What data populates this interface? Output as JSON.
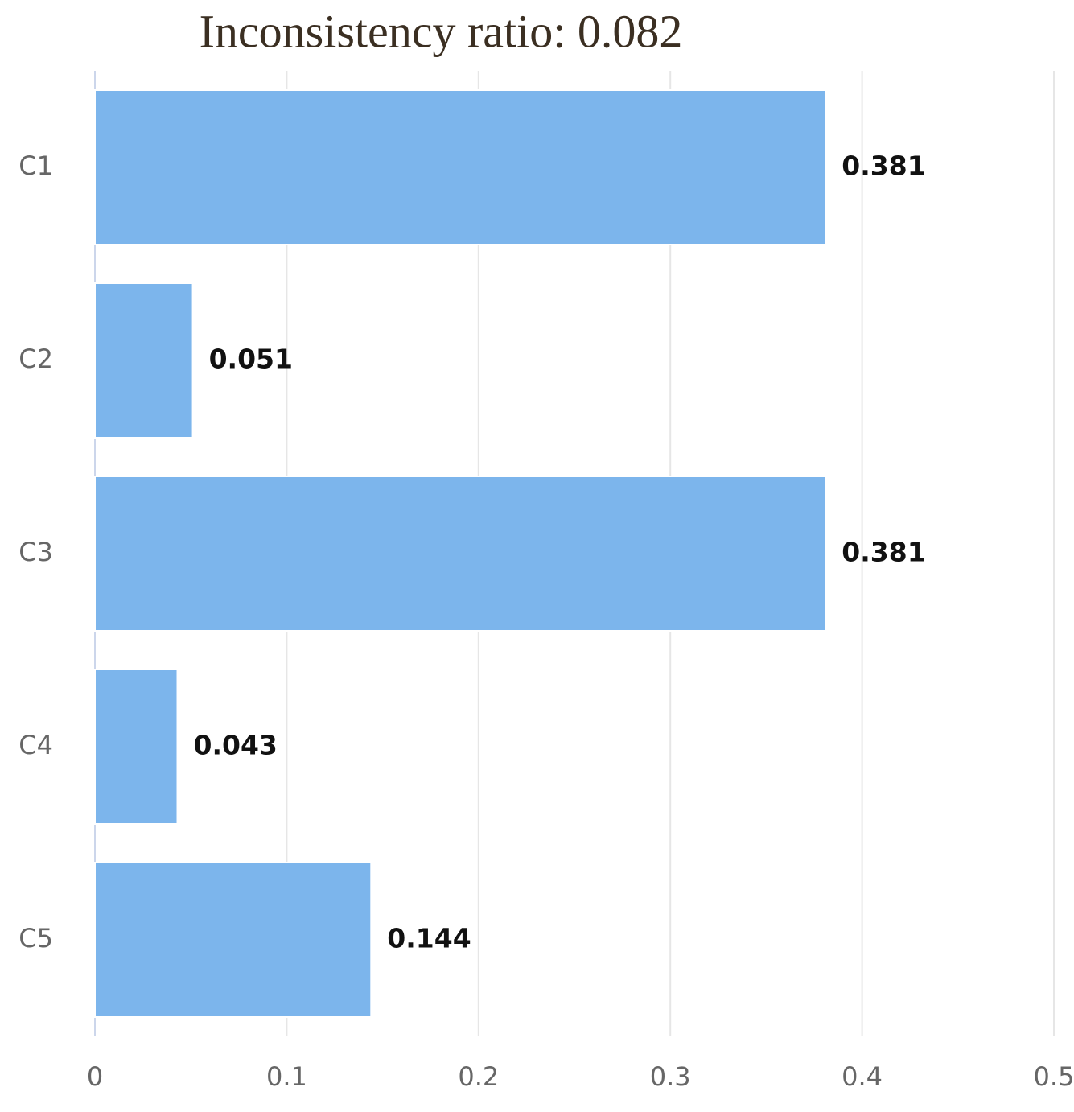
{
  "chart_data": {
    "type": "bar",
    "orientation": "horizontal",
    "title": "Inconsistency ratio: 0.082",
    "categories": [
      "C1",
      "C2",
      "C3",
      "C4",
      "C5"
    ],
    "values": [
      0.381,
      0.051,
      0.381,
      0.043,
      0.144
    ],
    "color": "#7cb5ec",
    "xlim": [
      0,
      0.5
    ],
    "xticks": [
      0,
      0.1,
      0.2,
      0.3,
      0.4,
      0.5
    ],
    "grid": true
  }
}
